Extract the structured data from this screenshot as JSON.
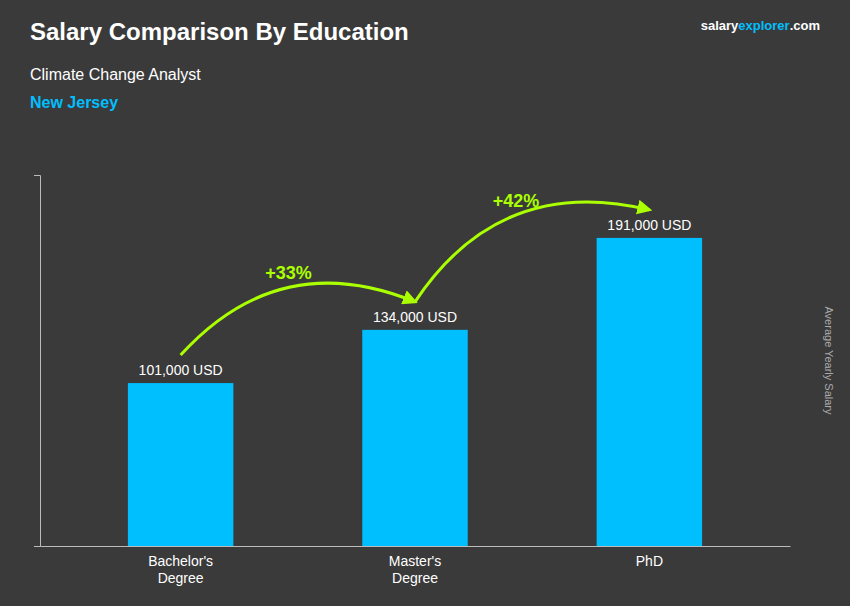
{
  "chart_data": {
    "type": "bar",
    "title": "Salary Comparison By Education",
    "subtitle": "Climate Change Analyst",
    "ylabel": "Average Yearly Salary",
    "categories": [
      "Bachelor's\nDegree",
      "Master's\nDegree",
      "PhD"
    ],
    "values": [
      101000,
      134000,
      191000
    ],
    "value_labels": [
      "101,000 USD",
      "134,000 USD",
      "191,000 USD"
    ],
    "data_labels": true,
    "color": "#00BFFF",
    "ylim": [
      0,
      230000
    ],
    "tick_labels": "x",
    "grid": false,
    "annotations": [
      {
        "text": "New Jersey",
        "color": "#00BFFF"
      },
      {
        "text": "+33%",
        "from": 0,
        "to": 1,
        "color": "#AAFF00"
      },
      {
        "text": "+42%",
        "from": 1,
        "to": 2,
        "color": "#AAFF00"
      }
    ],
    "source": [
      {
        "text": "salary",
        "color": "#FFFFFF"
      },
      {
        "text": "explorer",
        "color": "#00BFFF"
      },
      {
        "text": ".com",
        "color": "#FFFFFF"
      }
    ]
  }
}
